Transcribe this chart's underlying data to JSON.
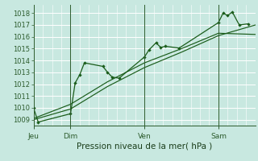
{
  "title": "Pression niveau de la mer( hPa )",
  "bg_color": "#c8e8e0",
  "grid_color": "#ffffff",
  "line_color": "#1a5c1a",
  "ylim": [
    1008.5,
    1018.7
  ],
  "yticks": [
    1009,
    1010,
    1011,
    1012,
    1013,
    1014,
    1015,
    1016,
    1017,
    1018
  ],
  "day_labels": [
    "Jeu",
    "Dim",
    "Ven",
    "Sam"
  ],
  "day_positions": [
    0,
    16,
    48,
    80
  ],
  "xlim": [
    0,
    96
  ],
  "series1_x": [
    0,
    2,
    16,
    18,
    20,
    22,
    30,
    32,
    34,
    37,
    48,
    50,
    53,
    55,
    57,
    63,
    80,
    82,
    84,
    86,
    89,
    93
  ],
  "series1_y": [
    1010.0,
    1008.8,
    1009.5,
    1012.1,
    1012.8,
    1013.8,
    1013.5,
    1013.0,
    1012.6,
    1012.5,
    1014.3,
    1014.9,
    1015.5,
    1015.1,
    1015.2,
    1015.05,
    1017.2,
    1018.0,
    1017.8,
    1018.1,
    1017.0,
    1017.1
  ],
  "series2_x": [
    0,
    16,
    32,
    48,
    64,
    80,
    96
  ],
  "series2_y": [
    1009.0,
    1009.9,
    1011.8,
    1013.4,
    1014.7,
    1016.1,
    1017.0
  ],
  "series3_x": [
    0,
    16,
    32,
    48,
    64,
    80,
    96
  ],
  "series3_y": [
    1009.1,
    1010.3,
    1012.2,
    1013.8,
    1015.0,
    1016.3,
    1016.2
  ],
  "vline_positions": [
    16,
    48,
    80
  ],
  "vline_color": "#2d5c2d",
  "tick_label_color": "#2d5c2d",
  "xlabel_color": "#1a3d1a"
}
